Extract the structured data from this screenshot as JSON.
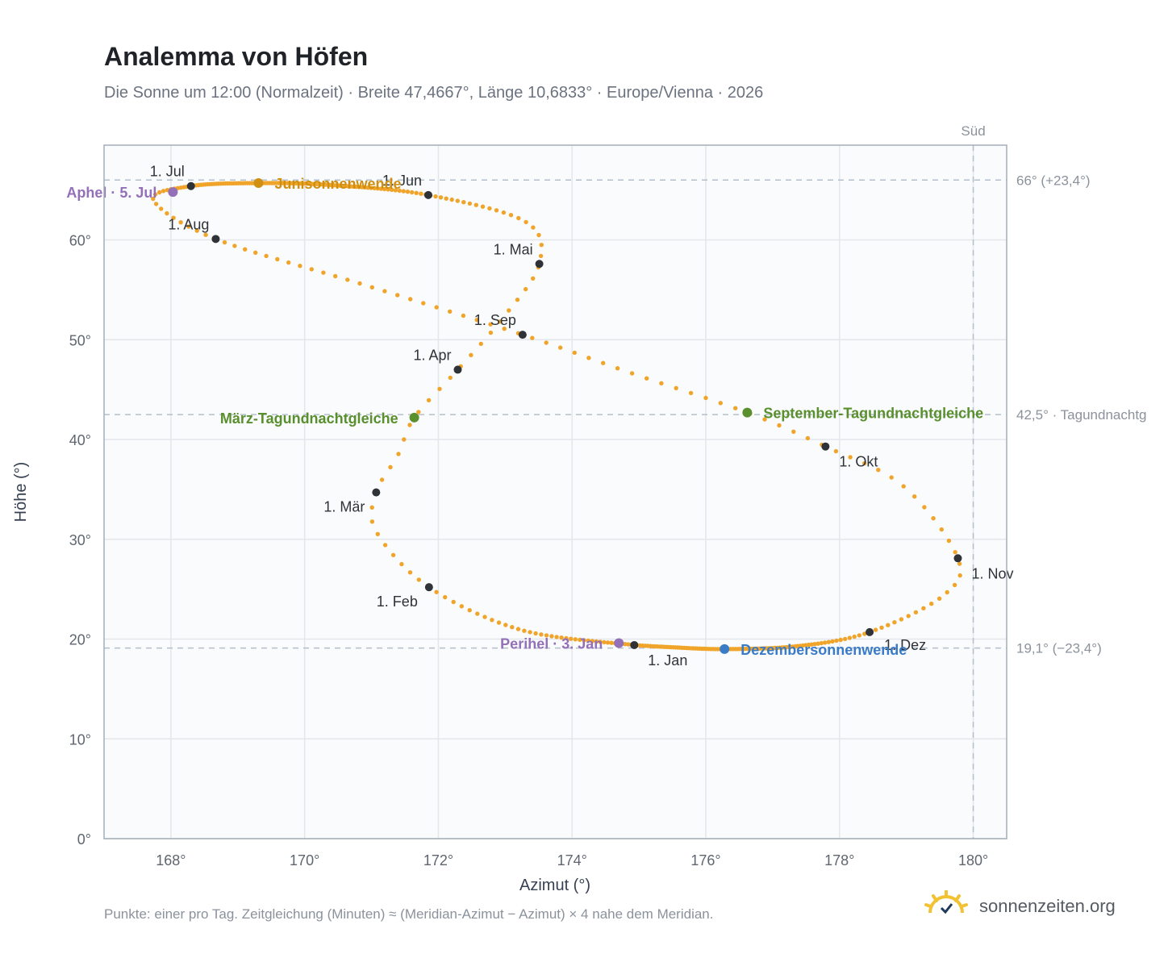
{
  "title": "Analemma von Höfen",
  "subtitle": "Die Sonne um 12:00 (Normalzeit) · Breite 47,4667°, Länge 10,6833° · Europe/Vienna · 2026",
  "footer": "Punkte: einer pro Tag. Zeitgleichung (Minuten) ≈ (Meridian-Azimut − Azimut) × 4 nahe dem Meridian.",
  "brand": "sonnenzeiten.org",
  "colors": {
    "curve": "#f0a52a",
    "month_point": "#2f3338",
    "equinox": "#5a8f2e",
    "june_solstice": "#d08f10",
    "december_solstice": "#3a7bc8",
    "apsis": "#9370b8",
    "plot_bg": "#f9fbfd",
    "grid": "#e3e7ec",
    "reference_line": "#b5bfca"
  },
  "chart_data": {
    "type": "scatter",
    "xlabel": "Azimut (°)",
    "ylabel": "Höhe (°)",
    "xlim": [
      167.0,
      180.5
    ],
    "ylim": [
      0,
      69.5
    ],
    "xticks": [
      {
        "value": 168,
        "label": "168°"
      },
      {
        "value": 170,
        "label": "170°"
      },
      {
        "value": 172,
        "label": "172°"
      },
      {
        "value": 174,
        "label": "174°"
      },
      {
        "value": 176,
        "label": "176°"
      },
      {
        "value": 178,
        "label": "178°"
      },
      {
        "value": 180,
        "label": "180°"
      }
    ],
    "yticks": [
      {
        "value": 0,
        "label": "0°"
      },
      {
        "value": 10,
        "label": "10°"
      },
      {
        "value": 20,
        "label": "20°"
      },
      {
        "value": 30,
        "label": "30°"
      },
      {
        "value": 40,
        "label": "40°"
      },
      {
        "value": 50,
        "label": "50°"
      },
      {
        "value": 60,
        "label": "60°"
      }
    ],
    "grid": true,
    "curve_description": "one point per day",
    "meridian": {
      "value": 180,
      "label": "Süd"
    },
    "reference_lines": [
      {
        "value": 66.0,
        "label": "66° (+23,4°)"
      },
      {
        "value": 42.5,
        "label": "42,5° · Tagundnachtg"
      },
      {
        "value": 19.1,
        "label": "19,1° (−23,4°)"
      }
    ],
    "month_points": [
      {
        "label": "1. Jan",
        "azimuth": 174.93,
        "altitude": 19.4,
        "label_pos": "below-right"
      },
      {
        "label": "1. Feb",
        "azimuth": 171.86,
        "altitude": 25.2,
        "label_pos": "below-left"
      },
      {
        "label": "1. Mär",
        "azimuth": 171.07,
        "altitude": 34.7,
        "label_pos": "below-left"
      },
      {
        "label": "1. Apr",
        "azimuth": 172.29,
        "altitude": 47.0,
        "label_pos": "above-left"
      },
      {
        "label": "1. Mai",
        "azimuth": 173.51,
        "altitude": 57.6,
        "label_pos": "above-left"
      },
      {
        "label": "1. Jun",
        "azimuth": 171.85,
        "altitude": 64.5,
        "label_pos": "above-left"
      },
      {
        "label": "1. Jul",
        "azimuth": 168.3,
        "altitude": 65.4,
        "label_pos": "above-left"
      },
      {
        "label": "1. Aug",
        "azimuth": 168.67,
        "altitude": 60.1,
        "label_pos": "above-left"
      },
      {
        "label": "1. Sep",
        "azimuth": 173.26,
        "altitude": 50.5,
        "label_pos": "above-left"
      },
      {
        "label": "1. Okt",
        "azimuth": 177.79,
        "altitude": 39.3,
        "label_pos": "below-right"
      },
      {
        "label": "1. Nov",
        "azimuth": 179.77,
        "altitude": 28.1,
        "label_pos": "below-right"
      },
      {
        "label": "1. Dez",
        "azimuth": 178.45,
        "altitude": 20.7,
        "label_pos": "right"
      }
    ],
    "events": [
      {
        "label": "Perihel · 3. Jan",
        "azimuth": 174.7,
        "altitude": 19.6,
        "type": "apsis",
        "label_side": "left"
      },
      {
        "label": "März-Tagundnachtgleiche",
        "azimuth": 171.64,
        "altitude": 42.2,
        "type": "equinox",
        "label_side": "left"
      },
      {
        "label": "Junisonnenwende",
        "azimuth": 169.31,
        "altitude": 65.7,
        "type": "june_solstice",
        "label_side": "right"
      },
      {
        "label": "Aphel · 5. Jul",
        "azimuth": 168.03,
        "altitude": 64.8,
        "type": "apsis",
        "label_side": "left"
      },
      {
        "label": "September-Tagundnachtgleiche",
        "azimuth": 176.62,
        "altitude": 42.7,
        "type": "equinox",
        "label_side": "right"
      },
      {
        "label": "Dezembersonnenwende",
        "azimuth": 176.28,
        "altitude": 19.0,
        "type": "december_solstice",
        "label_side": "right"
      }
    ],
    "curve_path": [
      [
        174.93,
        19.4
      ],
      [
        173.25,
        20.9
      ],
      [
        171.86,
        25.2
      ],
      [
        171.07,
        30.8
      ],
      [
        171.07,
        34.7
      ],
      [
        171.4,
        38.5
      ],
      [
        171.64,
        42.2
      ],
      [
        172.29,
        47.0
      ],
      [
        172.98,
        52.3
      ],
      [
        173.51,
        57.6
      ],
      [
        173.31,
        61.8
      ],
      [
        171.85,
        64.5
      ],
      [
        170.4,
        65.5
      ],
      [
        169.31,
        65.7
      ],
      [
        168.3,
        65.4
      ],
      [
        167.74,
        64.0
      ],
      [
        168.67,
        60.1
      ],
      [
        170.94,
        55.4
      ],
      [
        173.26,
        50.5
      ],
      [
        174.91,
        46.6
      ],
      [
        176.62,
        42.7
      ],
      [
        177.79,
        39.3
      ],
      [
        178.96,
        35.3
      ],
      [
        179.77,
        28.1
      ],
      [
        179.56,
        24.4
      ],
      [
        178.45,
        20.7
      ],
      [
        177.38,
        19.3
      ],
      [
        176.28,
        19.0
      ],
      [
        175.44,
        19.2
      ],
      [
        174.93,
        19.4
      ]
    ]
  }
}
